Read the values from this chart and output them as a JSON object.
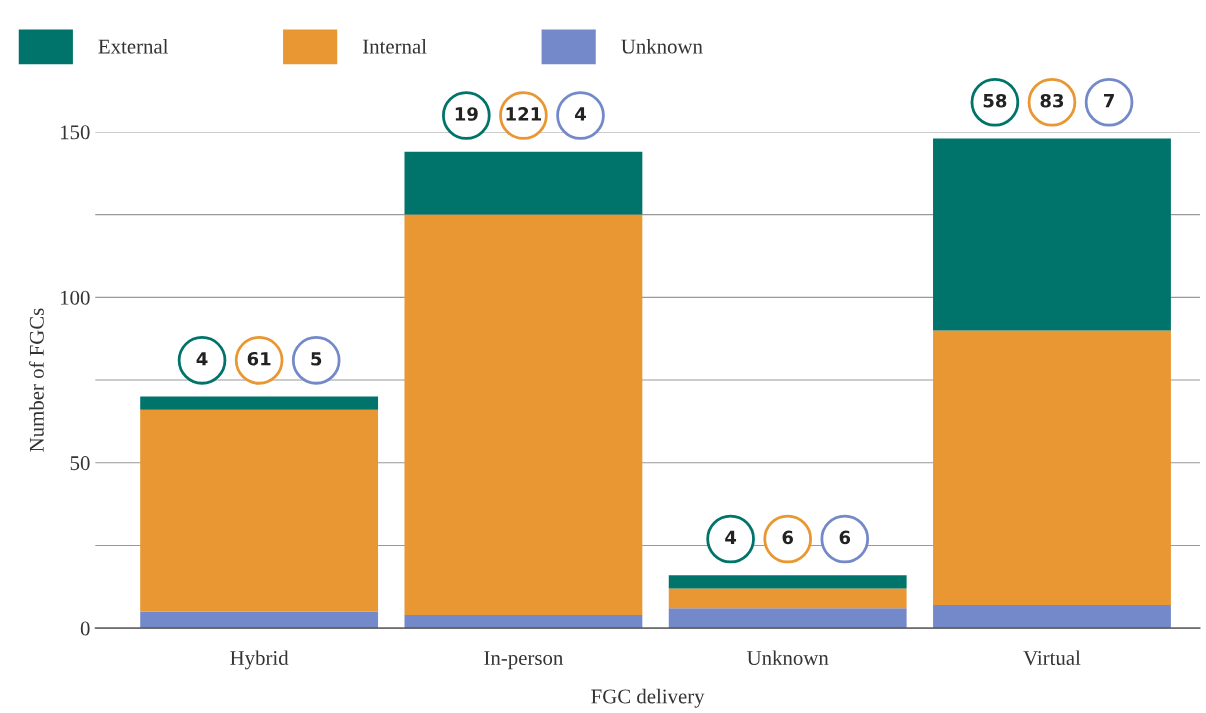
{
  "chart_data": {
    "type": "bar",
    "stacked": true,
    "xlabel": "FGC delivery",
    "ylabel": "Number of FGCs",
    "categories": [
      "Hybrid",
      "In-person",
      "Unknown",
      "Virtual"
    ],
    "series": [
      {
        "name": "Unknown",
        "color": "#7389c9",
        "values": [
          5,
          4,
          6,
          7
        ]
      },
      {
        "name": "Internal",
        "color": "#e89732",
        "values": [
          61,
          121,
          6,
          83
        ]
      },
      {
        "name": "External",
        "color": "#00736b",
        "values": [
          4,
          19,
          4,
          58
        ]
      }
    ],
    "annotations": [
      "4",
      "61",
      "5",
      "19",
      "121",
      "4",
      "4",
      "6",
      "6",
      "58",
      "83",
      "7"
    ],
    "ylim": [
      0,
      150
    ],
    "yticks": [
      0,
      {
        "value": 25,
        "label": null
      },
      50,
      {
        "value": 75,
        "label": null
      },
      100,
      {
        "value": 125,
        "label": null
      },
      150
    ],
    "grid": "y",
    "legend": "top left"
  }
}
